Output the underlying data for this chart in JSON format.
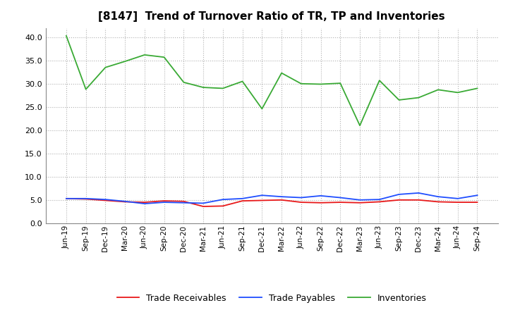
{
  "title": "[8147]  Trend of Turnover Ratio of TR, TP and Inventories",
  "x_labels": [
    "Jun-19",
    "Sep-19",
    "Dec-19",
    "Mar-20",
    "Jun-20",
    "Sep-20",
    "Dec-20",
    "Mar-21",
    "Jun-21",
    "Sep-21",
    "Dec-21",
    "Mar-22",
    "Jun-22",
    "Sep-22",
    "Dec-22",
    "Mar-23",
    "Jun-23",
    "Sep-23",
    "Dec-23",
    "Mar-24",
    "Jun-24",
    "Sep-24"
  ],
  "trade_receivables": [
    5.3,
    5.2,
    4.9,
    4.6,
    4.5,
    4.8,
    4.7,
    3.6,
    3.7,
    4.8,
    4.9,
    5.0,
    4.5,
    4.4,
    4.5,
    4.4,
    4.6,
    5.0,
    5.0,
    4.6,
    4.5,
    4.5
  ],
  "trade_payables": [
    5.3,
    5.3,
    5.1,
    4.7,
    4.2,
    4.5,
    4.4,
    4.3,
    5.1,
    5.3,
    6.0,
    5.7,
    5.5,
    5.9,
    5.5,
    5.0,
    5.1,
    6.2,
    6.5,
    5.7,
    5.3,
    6.0
  ],
  "inventories": [
    40.3,
    28.8,
    33.5,
    34.8,
    36.2,
    35.7,
    30.3,
    29.2,
    29.0,
    30.5,
    24.6,
    32.3,
    30.0,
    29.9,
    30.1,
    21.0,
    30.7,
    26.5,
    27.0,
    28.7,
    28.1,
    29.0
  ],
  "color_tr": "#e8191a",
  "color_tp": "#1f4eff",
  "color_inv": "#3aaa35",
  "ylim": [
    0.0,
    42.0
  ],
  "yticks": [
    0.0,
    5.0,
    10.0,
    15.0,
    20.0,
    25.0,
    30.0,
    35.0,
    40.0
  ],
  "bg_color": "#ffffff",
  "grid_color": "#aaaaaa",
  "title_fontsize": 11,
  "legend_labels": [
    "Trade Receivables",
    "Trade Payables",
    "Inventories"
  ]
}
